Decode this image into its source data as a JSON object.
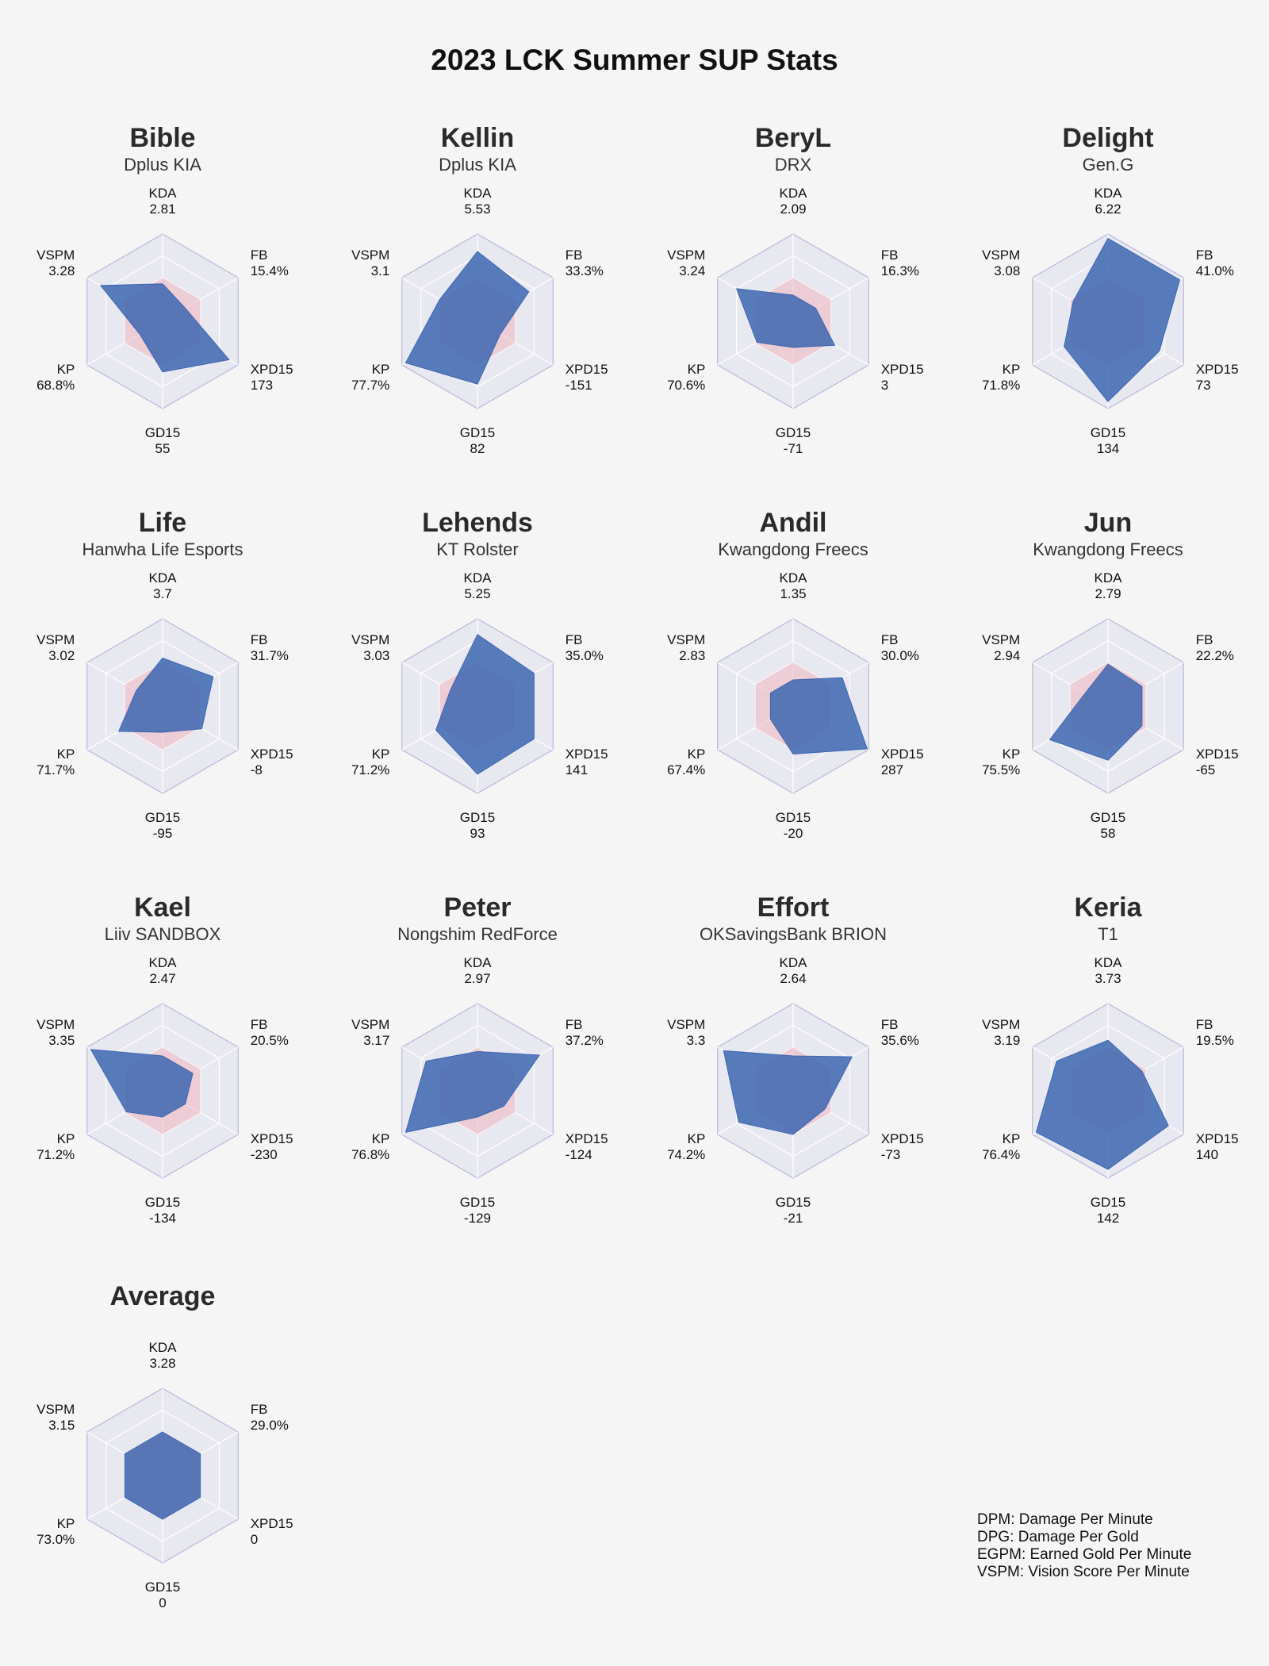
{
  "title": "2023 LCK Summer SUP Stats",
  "colors": {
    "player_fill": "#3d66b0",
    "average_fill": "#f0b7c0",
    "grid": "#b8b8dc",
    "panel_bg": "#e8e8f0"
  },
  "glossary": [
    "DPM: Damage Per Minute",
    "DPG: Damage Per Gold",
    "EGPM: Earned Gold Per Minute",
    "VSPM: Vision Score Per Minute"
  ],
  "chart_data": {
    "type": "radar",
    "axes": [
      "KDA",
      "FB",
      "XPD15",
      "GD15",
      "KP",
      "VSPM"
    ],
    "panels": [
      {
        "name": "Bible",
        "team": "Dplus KIA",
        "labels": [
          "2.81",
          "15.4%",
          "173",
          "55",
          "68.8%",
          "3.28"
        ],
        "values": [
          0.43,
          0.3,
          0.88,
          0.58,
          0.3,
          0.82
        ]
      },
      {
        "name": "Kellin",
        "team": "Dplus KIA",
        "labels": [
          "5.53",
          "33.3%",
          "-151",
          "82",
          "77.7%",
          "3.1"
        ],
        "values": [
          0.8,
          0.68,
          0.3,
          0.72,
          0.95,
          0.5
        ]
      },
      {
        "name": "BeryL",
        "team": "DRX",
        "labels": [
          "2.09",
          "16.3%",
          "3",
          "-71",
          "70.6%",
          "3.24"
        ],
        "values": [
          0.3,
          0.3,
          0.55,
          0.3,
          0.48,
          0.75
        ]
      },
      {
        "name": "Delight",
        "team": "Gen.G",
        "labels": [
          "6.22",
          "41.0%",
          "73",
          "134",
          "71.8%",
          "3.08"
        ],
        "values": [
          0.95,
          0.95,
          0.68,
          0.92,
          0.58,
          0.46
        ]
      },
      {
        "name": "Life",
        "team": "Hanwha Life Esports",
        "labels": [
          "3.7",
          "31.7%",
          "-8",
          "-95",
          "71.7%",
          "3.02"
        ],
        "values": [
          0.55,
          0.67,
          0.52,
          0.3,
          0.58,
          0.35
        ]
      },
      {
        "name": "Lehends",
        "team": "KT Rolster",
        "labels": [
          "5.25",
          "35.0%",
          "141",
          "93",
          "71.2%",
          "3.03"
        ],
        "values": [
          0.82,
          0.75,
          0.75,
          0.78,
          0.55,
          0.36
        ]
      },
      {
        "name": "Andil",
        "team": "Kwangdong Freecs",
        "labels": [
          "1.35",
          "30.0%",
          "287",
          "-20",
          "67.4%",
          "2.83"
        ],
        "values": [
          0.3,
          0.65,
          0.98,
          0.55,
          0.3,
          0.3
        ]
      },
      {
        "name": "Jun",
        "team": "Kwangdong Freecs",
        "labels": [
          "2.79",
          "22.2%",
          "-65",
          "58",
          "75.5%",
          "2.94"
        ],
        "values": [
          0.48,
          0.45,
          0.45,
          0.62,
          0.77,
          0.3
        ]
      },
      {
        "name": "Kael",
        "team": "Liiv SANDBOX",
        "labels": [
          "2.47",
          "20.5%",
          "-230",
          "-134",
          "71.2%",
          "3.35"
        ],
        "values": [
          0.4,
          0.4,
          0.3,
          0.3,
          0.48,
          0.95
        ]
      },
      {
        "name": "Peter",
        "team": "Nongshim RedForce",
        "labels": [
          "2.97",
          "37.2%",
          "-124",
          "-129",
          "76.8%",
          "3.17"
        ],
        "values": [
          0.45,
          0.82,
          0.35,
          0.3,
          0.95,
          0.68
        ]
      },
      {
        "name": "Effort",
        "team": "OKSavingsBank BRION",
        "labels": [
          "2.64",
          "35.6%",
          "-73",
          "-21",
          "74.2%",
          "3.3"
        ],
        "values": [
          0.4,
          0.78,
          0.42,
          0.5,
          0.72,
          0.92
        ]
      },
      {
        "name": "Keria",
        "team": "T1",
        "labels": [
          "3.73",
          "19.5%",
          "140",
          "142",
          "76.4%",
          "3.19"
        ],
        "values": [
          0.58,
          0.45,
          0.8,
          0.9,
          0.95,
          0.68
        ]
      },
      {
        "name": "Average",
        "team": "",
        "labels": [
          "3.28",
          "29.0%",
          "0",
          "0",
          "73.0%",
          "3.15"
        ],
        "values": [
          0.5,
          0.5,
          0.5,
          0.5,
          0.5,
          0.5
        ]
      }
    ]
  }
}
